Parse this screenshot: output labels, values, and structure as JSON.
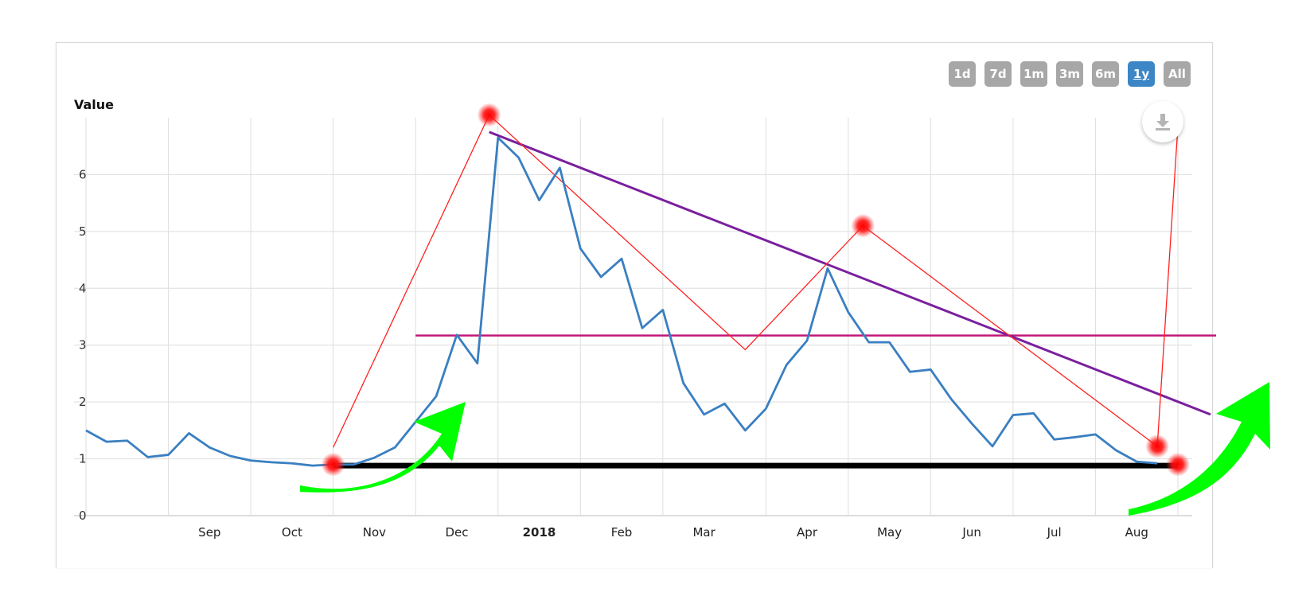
{
  "chart_data": {
    "type": "line",
    "title": "",
    "xlabel": "",
    "ylabel": "Value",
    "ylim": [
      0,
      7
    ],
    "y_ticks": [
      0,
      1,
      2,
      3,
      4,
      5,
      6
    ],
    "grid": true,
    "x_tick_labels": [
      "Sep",
      "Oct",
      "Nov",
      "Dec",
      "2018",
      "Feb",
      "Mar",
      "Apr",
      "May",
      "Jun",
      "Jul",
      "Aug"
    ],
    "series": [
      {
        "color": "#3a7fc1",
        "x": [
          "2017-08-06",
          "2017-08-13",
          "2017-08-20",
          "2017-08-27",
          "2017-09-03",
          "2017-09-10",
          "2017-09-17",
          "2017-09-24",
          "2017-10-01",
          "2017-10-08",
          "2017-10-15",
          "2017-10-22",
          "2017-10-29",
          "2017-11-05",
          "2017-11-12",
          "2017-11-19",
          "2017-11-26",
          "2017-12-03",
          "2017-12-10",
          "2017-12-17",
          "2017-12-24",
          "2017-12-31",
          "2018-01-07",
          "2018-01-14",
          "2018-01-21",
          "2018-01-28",
          "2018-02-04",
          "2018-02-11",
          "2018-02-18",
          "2018-02-25",
          "2018-03-04",
          "2018-03-11",
          "2018-03-18",
          "2018-03-25",
          "2018-04-01",
          "2018-04-08",
          "2018-04-15",
          "2018-04-22",
          "2018-04-29",
          "2018-05-06",
          "2018-05-13",
          "2018-05-20",
          "2018-05-27",
          "2018-06-03",
          "2018-06-10",
          "2018-06-17",
          "2018-06-24",
          "2018-07-01",
          "2018-07-08",
          "2018-07-15",
          "2018-07-22",
          "2018-07-29",
          "2018-08-05"
        ],
        "values": [
          1.5,
          1.3,
          1.32,
          1.03,
          1.07,
          1.45,
          1.2,
          1.05,
          0.97,
          0.94,
          0.92,
          0.88,
          0.9,
          0.9,
          1.02,
          1.2,
          1.65,
          2.1,
          3.18,
          2.68,
          6.65,
          6.3,
          5.55,
          6.12,
          4.7,
          4.2,
          4.52,
          3.3,
          3.62,
          2.33,
          1.78,
          1.97,
          1.5,
          1.88,
          2.65,
          3.08,
          4.35,
          3.58,
          3.05,
          3.05,
          2.53,
          2.57,
          2.05,
          1.62,
          1.22,
          1.77,
          1.8,
          1.34,
          1.38,
          1.43,
          1.15,
          0.95,
          0.92
        ]
      }
    ],
    "annotations": {
      "red_zigzag": {
        "color": "#ff2020",
        "points": [
          [
            "2017-10-29",
            1.2
          ],
          [
            "2017-12-21",
            7.05
          ],
          [
            "2018-03-18",
            2.92
          ],
          [
            "2018-04-27",
            5.1
          ],
          [
            "2018-08-05",
            1.22
          ],
          [
            "2018-08-12",
            6.85
          ]
        ]
      },
      "red_markers": [
        [
          "2017-10-29",
          0.9
        ],
        [
          "2017-12-21",
          7.05
        ],
        [
          "2018-04-27",
          5.1
        ],
        [
          "2018-08-05",
          1.22
        ],
        [
          "2018-08-12",
          0.9
        ]
      ],
      "purple_trendline": {
        "color": "#7a1f9e",
        "from": [
          "2017-12-21",
          6.75
        ],
        "to": [
          "2018-09-02",
          1.78
        ]
      },
      "magenta_level": {
        "color": "#c2187a",
        "value": 3.17,
        "from": "2017-11-26",
        "to": "2018-09-02"
      },
      "black_support": {
        "color": "#000000",
        "value": 0.88,
        "from": "2017-10-29",
        "to": "2018-08-12"
      },
      "green_arrow_color": "#00ff00"
    }
  },
  "controls": {
    "range_buttons": [
      {
        "label": "1d",
        "active": false
      },
      {
        "label": "7d",
        "active": false
      },
      {
        "label": "1m",
        "active": false
      },
      {
        "label": "3m",
        "active": false
      },
      {
        "label": "6m",
        "active": false
      },
      {
        "label": "1y",
        "active": true
      },
      {
        "label": "All",
        "active": false
      }
    ],
    "download_icon": "download-icon"
  }
}
